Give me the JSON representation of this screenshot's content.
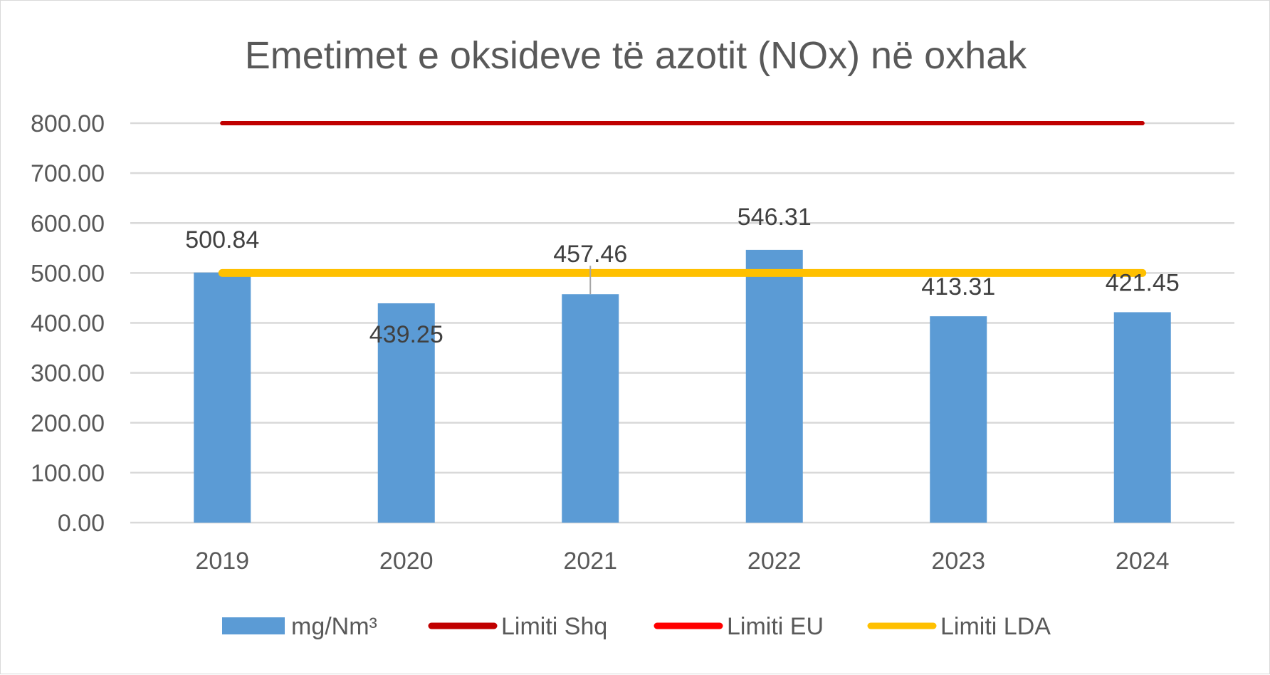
{
  "chart_data": {
    "type": "bar",
    "title": "Emetimet e oksideve të azotit (NOx) në oxhak",
    "categories": [
      "2019",
      "2020",
      "2021",
      "2022",
      "2023",
      "2024"
    ],
    "y_ticks": [
      "0.00",
      "100.00",
      "200.00",
      "300.00",
      "400.00",
      "500.00",
      "600.00",
      "700.00",
      "800.00"
    ],
    "ylim": [
      0,
      800
    ],
    "grid": true,
    "legend_position": "bottom",
    "series": [
      {
        "name": "mg/Nm³",
        "kind": "bar",
        "color": "#5b9bd5",
        "values": [
          500.84,
          439.25,
          457.46,
          546.31,
          413.31,
          421.45
        ],
        "labels": [
          "500.84",
          "439.25",
          "457.46",
          "546.31",
          "413.31",
          "421.45"
        ]
      },
      {
        "name": "Limiti Shq",
        "kind": "line",
        "color": "#c00000",
        "values": [
          800,
          800,
          800,
          800,
          800,
          800
        ]
      },
      {
        "name": "Limiti EU",
        "kind": "line",
        "color": "#ff0000",
        "values": [
          800,
          800,
          800,
          800,
          800,
          800
        ]
      },
      {
        "name": "Limiti LDA",
        "kind": "line",
        "color": "#ffc000",
        "values": [
          500,
          500,
          500,
          500,
          500,
          500
        ]
      }
    ]
  }
}
